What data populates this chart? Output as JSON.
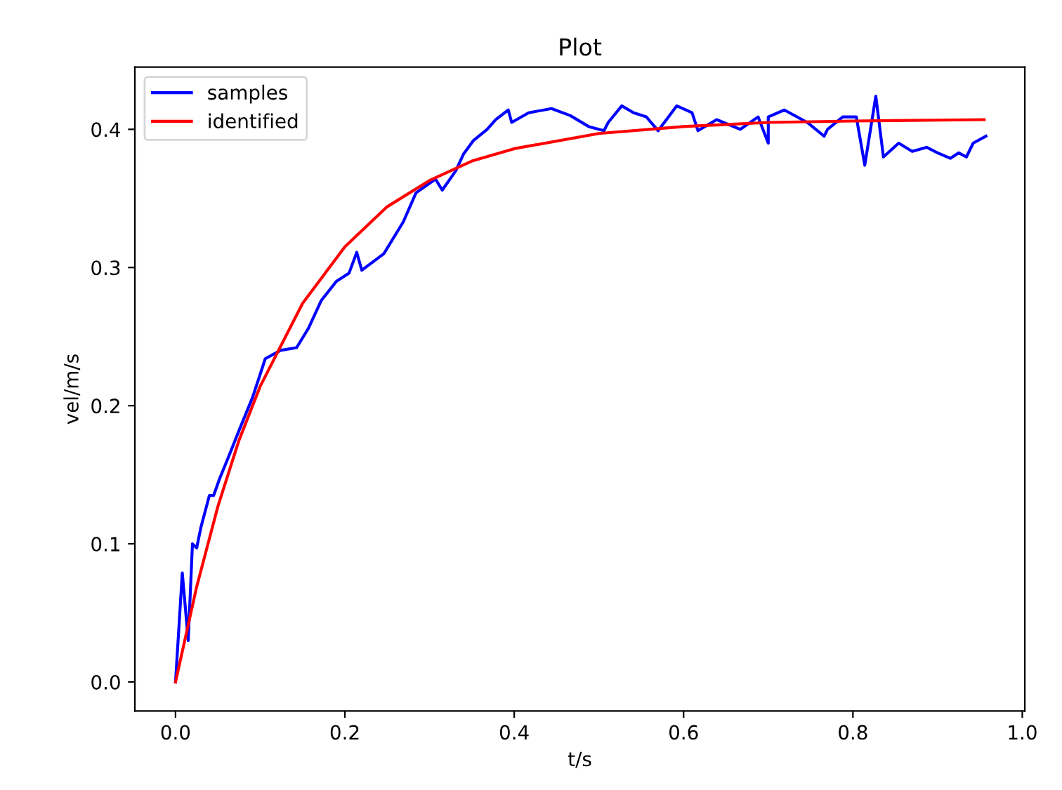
{
  "chart_data": {
    "type": "line",
    "title": "Plot",
    "xlabel": "t/s",
    "ylabel": "vel/m/s",
    "xlim": [
      -0.048,
      1.003
    ],
    "ylim": [
      -0.021,
      0.445
    ],
    "xticks": [
      {
        "value": 0,
        "label": "0.0"
      },
      0.2,
      0.4,
      0.6,
      0.8,
      {
        "value": 1,
        "label": "1.0"
      }
    ],
    "yticks": [
      {
        "value": 0,
        "label": "0.0"
      },
      0.1,
      0.2,
      0.3,
      0.4
    ],
    "legend": "top left",
    "grid": false,
    "marker": "none",
    "line_style": "solid",
    "series": [
      {
        "name": "samples",
        "color": "#0000ff",
        "x": [
          0,
          0.008,
          0.015,
          0.02,
          0.025,
          0.03,
          0.04,
          0.045,
          0.052,
          0.062,
          0.075,
          0.091,
          0.106,
          0.124,
          0.143,
          0.157,
          0.172,
          0.19,
          0.205,
          0.214,
          0.22,
          0.246,
          0.269,
          0.284,
          0.307,
          0.315,
          0.331,
          0.34,
          0.352,
          0.368,
          0.378,
          0.393,
          0.397,
          0.417,
          0.444,
          0.466,
          0.488,
          0.506,
          0.511,
          0.527,
          0.541,
          0.556,
          0.57,
          0.592,
          0.61,
          0.617,
          0.639,
          0.667,
          0.688,
          0.7,
          0.7,
          0.719,
          0.746,
          0.766,
          0.77,
          0.788,
          0.804,
          0.814,
          0.827,
          0.836,
          0.854,
          0.87,
          0.887,
          0.9,
          0.915,
          0.925,
          0.934,
          0.942,
          0.957
        ],
        "values": [
          0,
          0.079,
          0.03,
          0.1,
          0.097,
          0.112,
          0.135,
          0.135,
          0.147,
          0.162,
          0.182,
          0.206,
          0.234,
          0.24,
          0.242,
          0.256,
          0.276,
          0.29,
          0.296,
          0.311,
          0.298,
          0.31,
          0.333,
          0.354,
          0.364,
          0.356,
          0.37,
          0.382,
          0.392,
          0.4,
          0.407,
          0.414,
          0.405,
          0.412,
          0.415,
          0.41,
          0.402,
          0.399,
          0.405,
          0.417,
          0.412,
          0.409,
          0.399,
          0.417,
          0.412,
          0.399,
          0.407,
          0.4,
          0.409,
          0.39,
          0.409,
          0.414,
          0.405,
          0.395,
          0.4,
          0.409,
          0.409,
          0.374,
          0.424,
          0.38,
          0.39,
          0.384,
          0.387,
          0.383,
          0.379,
          0.383,
          0.38,
          0.39,
          0.395
        ]
      },
      {
        "name": "identified",
        "color": "#ff0000",
        "x": [
          0,
          0.025,
          0.05,
          0.075,
          0.1,
          0.15,
          0.2,
          0.25,
          0.3,
          0.35,
          0.4,
          0.5,
          0.6,
          0.7,
          0.8,
          0.955
        ],
        "values": [
          0,
          0.069,
          0.127,
          0.175,
          0.214,
          0.274,
          0.315,
          0.344,
          0.363,
          0.377,
          0.386,
          0.397,
          0.402,
          0.405,
          0.406,
          0.407
        ]
      }
    ]
  }
}
